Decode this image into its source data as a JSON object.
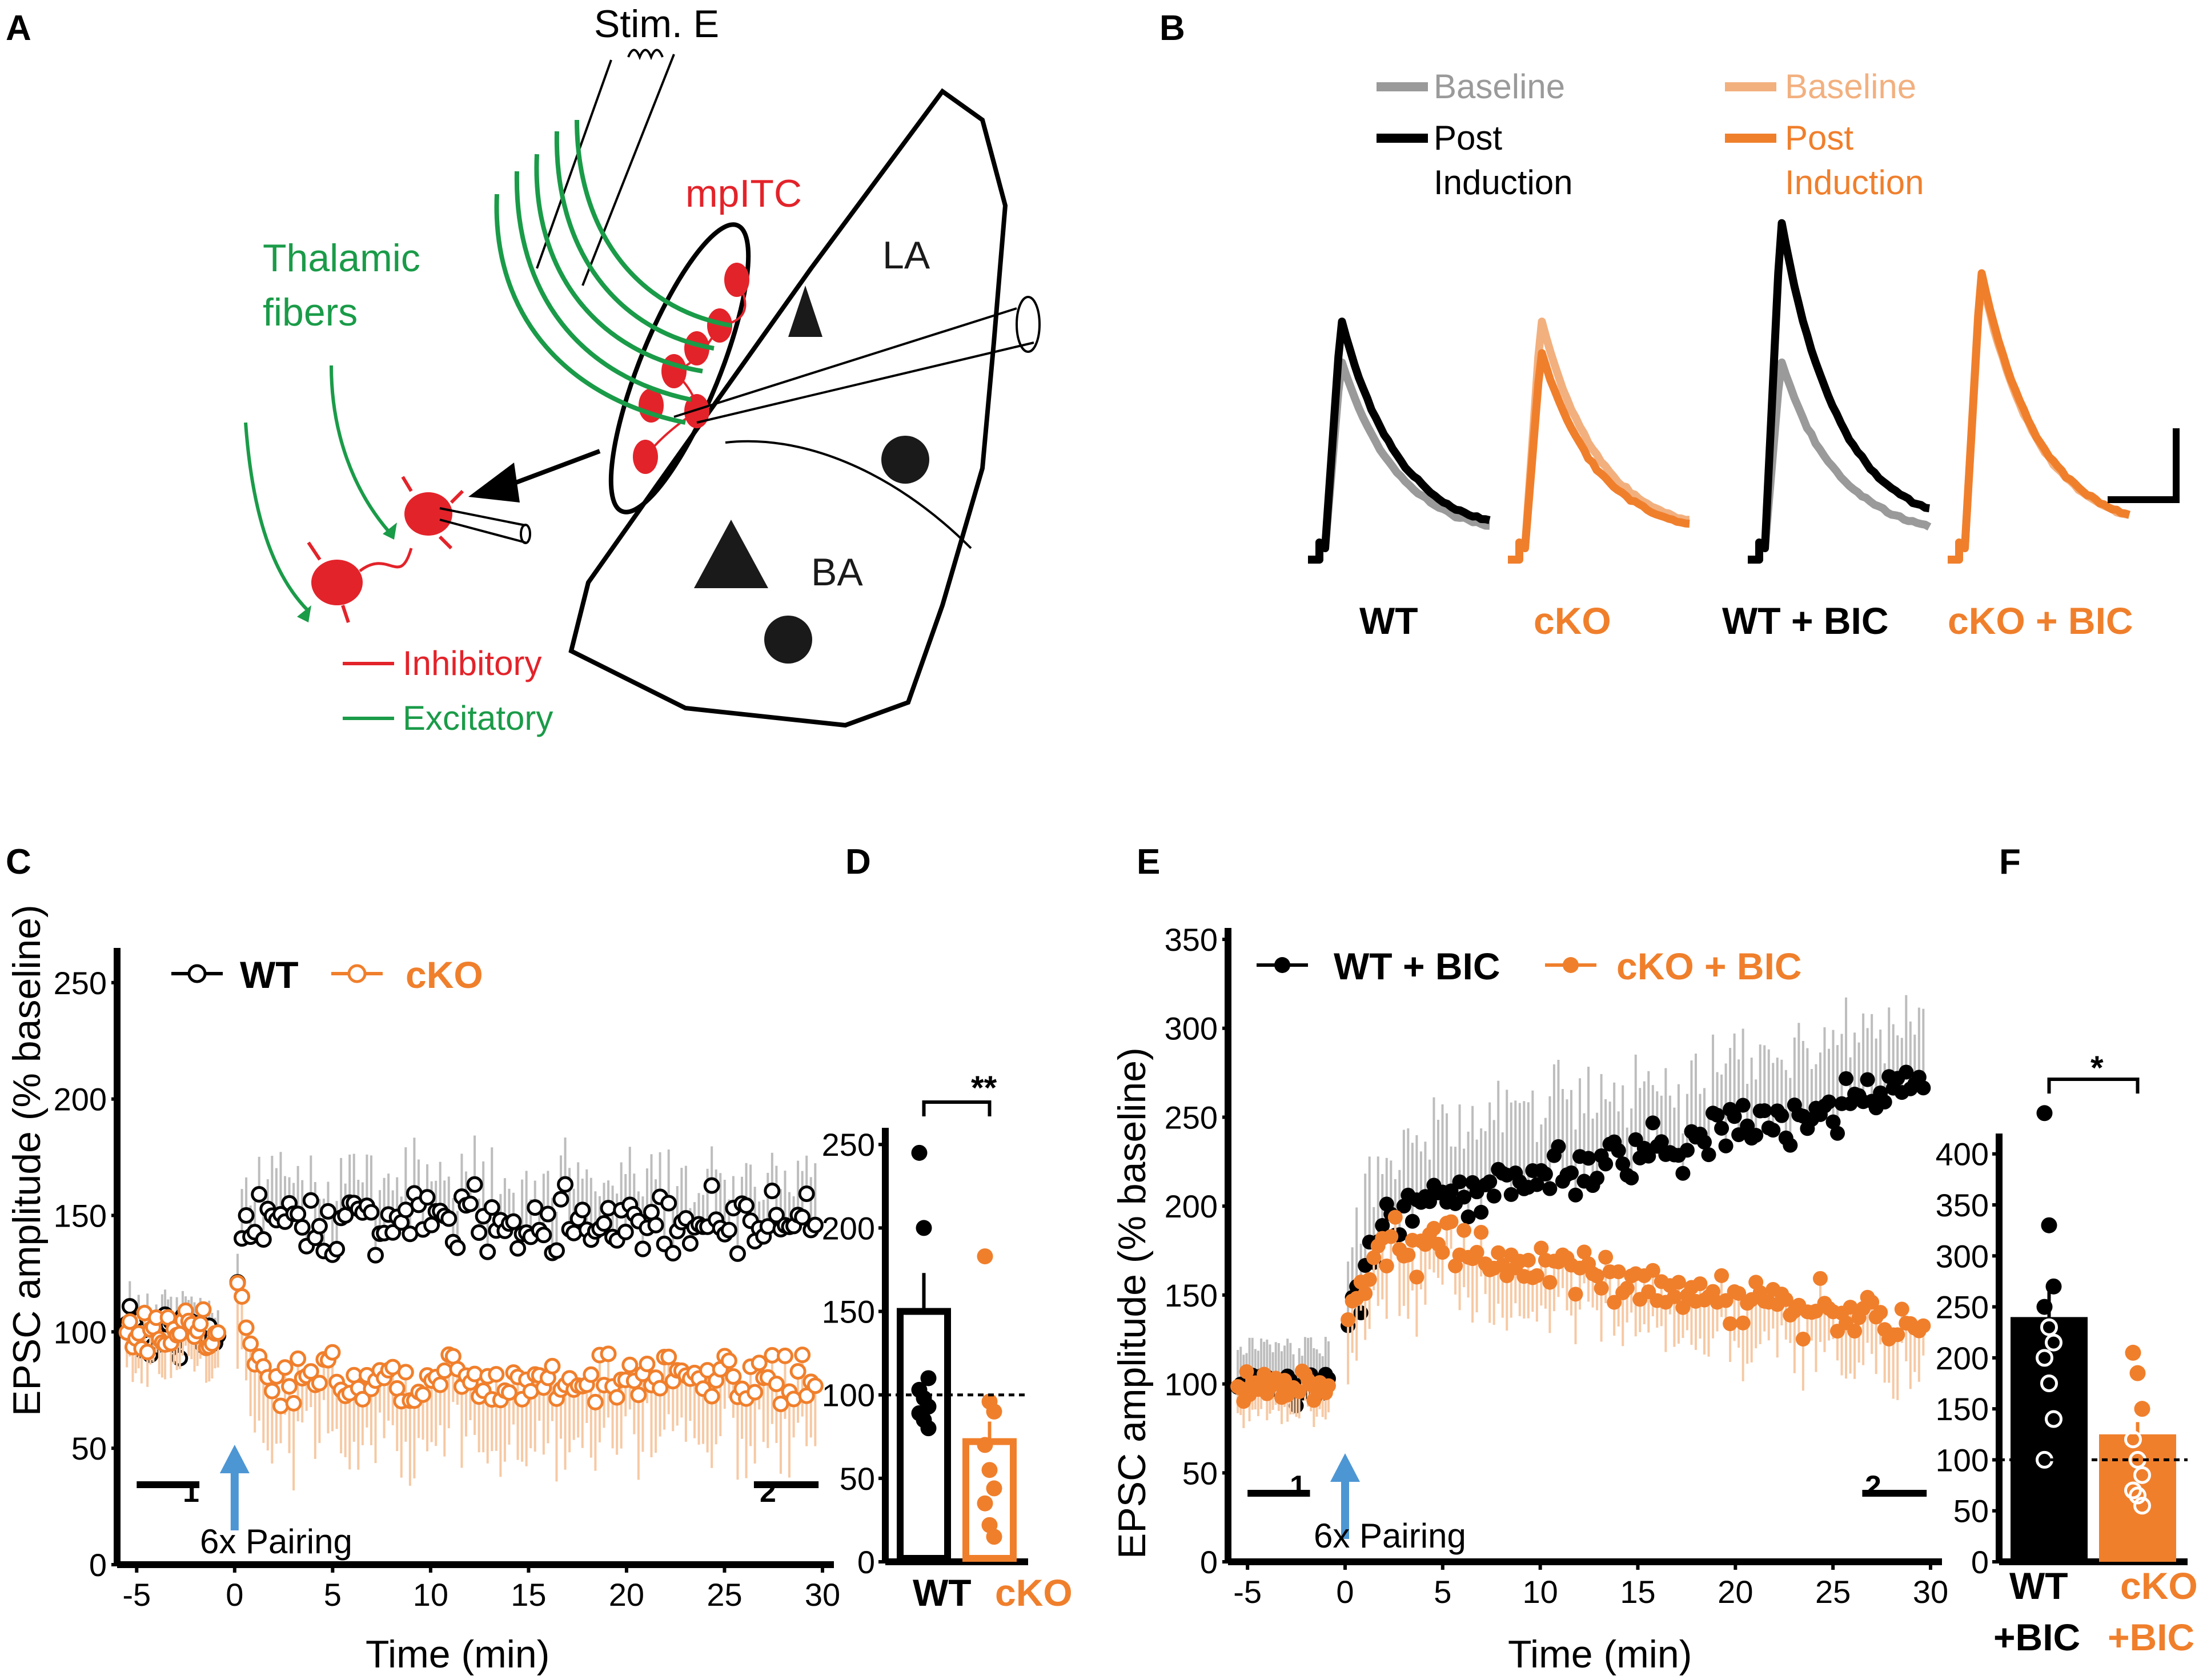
{
  "colors": {
    "black": "#000000",
    "gray": "#9a9a9a",
    "orange": "#f07f2c",
    "orange_light": "#f2b07f",
    "green": "#1a9b48",
    "red": "#e3232a",
    "blue": "#4d96d4",
    "err_gray": "#bdbdbd",
    "err_orange": "#f6c9a4"
  },
  "panelA": {
    "label": "A",
    "stim": "Stim. E",
    "mpitc": "mpITC",
    "thalamic_line1": "Thalamic",
    "thalamic_line2": "fibers",
    "la": "LA",
    "ba": "BA",
    "legend_inhibitory": "Inhibitory",
    "legend_excitatory": "Excitatory"
  },
  "panelB": {
    "label": "B",
    "legend_black_baseline": "Baseline",
    "legend_black_post1": "Post",
    "legend_black_post2": "Induction",
    "legend_orange_baseline": "Baseline",
    "legend_orange_post1": "Post",
    "legend_orange_post2": "Induction",
    "traces": [
      {
        "label": "WT",
        "baseline_peak": 1.0,
        "post_peak": 1.22
      },
      {
        "label": "cKO",
        "baseline_peak": 1.22,
        "post_peak": 1.05
      },
      {
        "label": "WT + BIC",
        "baseline_peak": 1.0,
        "post_peak": 1.75
      },
      {
        "label": "cKO + BIC",
        "baseline_peak": 1.45,
        "post_peak": 1.48
      }
    ]
  },
  "chart_data": [
    {
      "panel": "C",
      "type": "scatter",
      "xlabel": "Time (min)",
      "ylabel": "EPSC amplitude (% baseline)",
      "xlim": [
        -6,
        30
      ],
      "ylim": [
        0,
        260
      ],
      "xticks": [
        "-5",
        "0",
        "5",
        "10",
        "15",
        "20",
        "25",
        "30"
      ],
      "yticks": [
        "0",
        "50",
        "100",
        "150",
        "200",
        "250"
      ],
      "legend": [
        "WT",
        "cKO"
      ],
      "pairing_label": "6x Pairing",
      "bar1_label": "1",
      "bar2_label": "2",
      "series": [
        {
          "name": "WT",
          "base_level": 100,
          "post_level": 148,
          "spread": 20,
          "err": 18
        },
        {
          "name": "cKO",
          "base_level": 100,
          "post_level": 80,
          "spread": 17,
          "err": 25
        }
      ]
    },
    {
      "panel": "D",
      "type": "bar",
      "categories": [
        "WT",
        "cKO"
      ],
      "values": [
        150,
        72
      ],
      "errors": [
        23,
        12
      ],
      "points": [
        [
          245,
          200,
          110,
          103,
          98,
          93,
          89,
          85,
          80
        ],
        [
          183,
          96,
          90,
          70,
          55,
          44,
          35,
          22,
          15
        ]
      ],
      "ylim": [
        0,
        260
      ],
      "yticks": [
        "0",
        "50",
        "100",
        "150",
        "200",
        "250"
      ],
      "reference": 100,
      "significance": "**"
    },
    {
      "panel": "E",
      "type": "scatter",
      "xlabel": "Time (min)",
      "ylabel": "EPSC amplitude (% baseline)",
      "xlim": [
        -6,
        30
      ],
      "ylim": [
        0,
        350
      ],
      "xticks": [
        "-5",
        "0",
        "5",
        "10",
        "15",
        "20",
        "25",
        "30"
      ],
      "yticks": [
        "0",
        "50",
        "100",
        "150",
        "200",
        "250",
        "300",
        "350"
      ],
      "legend": [
        "WT + BIC",
        "cKO + BIC"
      ],
      "pairing_label": "6x Pairing",
      "bar1_label": "1",
      "bar2_label": "2",
      "series": [
        {
          "name": "WT + BIC",
          "base_level": 100,
          "post_start": 190,
          "post_end": 270,
          "spread": 22,
          "err": 35
        },
        {
          "name": "cKO + BIC",
          "base_level": 100,
          "post_start": 185,
          "post_end": 130,
          "spread": 20,
          "err": 25
        }
      ]
    },
    {
      "panel": "F",
      "type": "bar",
      "categories": [
        "WT +BIC",
        "cKO +BIC"
      ],
      "values": [
        240,
        125
      ],
      "errors": [
        28,
        12
      ],
      "points": [
        [
          440,
          330,
          270,
          250,
          230,
          215,
          200,
          175,
          140,
          100
        ],
        [
          205,
          185,
          150,
          120,
          100,
          85,
          70,
          65,
          55
        ]
      ],
      "ylim": [
        0,
        420
      ],
      "yticks": [
        "0",
        "50",
        "100",
        "150",
        "200",
        "250",
        "300",
        "350",
        "400"
      ],
      "reference": 100,
      "significance": "*"
    }
  ]
}
